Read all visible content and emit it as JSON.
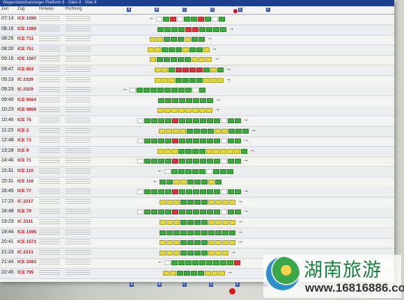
{
  "board": {
    "title_strip": "Wagenstandsanzeiger Platform 8 · Gleis 8 · Voie 8",
    "header": {
      "col_time": "Zeit",
      "col_train": "Zug",
      "col_notes": "Hinweis",
      "col_dest": "Richtung"
    },
    "sectors_top": [
      "A",
      "B",
      "C",
      "D",
      "E",
      "F"
    ],
    "sectors_bottom": [
      "A",
      "B",
      "C",
      "D",
      "E",
      "F"
    ]
  },
  "rows": [
    {
      "time": "07:14",
      "train": "ICE 1590",
      "arrow": "left",
      "cars": "wgrwggrgwg"
    },
    {
      "time": "08:16",
      "train": "ICE 1089",
      "arrow": "right",
      "cars": "ggggrrgggg"
    },
    {
      "time": "08:26",
      "train": "ICE 711",
      "arrow": "right",
      "cars": "yygggygg"
    },
    {
      "time": "08:26",
      "train": "ICE 751",
      "arrow": "right",
      "cars": "yygggyggy"
    },
    {
      "time": "09:16",
      "train": "ICE 1567",
      "arrow": "right",
      "cars": "ygggggyyy"
    },
    {
      "time": "09:47",
      "train": "ICE 853",
      "arrow": "right",
      "cars": "yygrrrrgyg"
    },
    {
      "time": "09:23",
      "train": "IC 2329",
      "arrow": "right",
      "cars": "yyyggggyyy"
    },
    {
      "time": "09:23",
      "train": "IC 2329",
      "arrow": "left",
      "cars": "wggggggggwg"
    },
    {
      "time": "09:40",
      "train": "ICE 9564",
      "arrow": "right",
      "cars": "gggggggg"
    },
    {
      "time": "10:23",
      "train": "ICE 9868",
      "arrow": "right",
      "cars": "yyyyyyyy"
    },
    {
      "time": "10:46",
      "train": "ICE 75",
      "arrow": "right",
      "cars": "wggggrggggggwgg"
    },
    {
      "time": "11:23",
      "train": "ICE 2",
      "arrow": "right",
      "cars": "yyyyggggyyggg"
    },
    {
      "time": "12:48",
      "train": "ICE 73",
      "arrow": "right",
      "cars": "wggggrggggggwgg"
    },
    {
      "time": "13:28",
      "train": "ICE 9",
      "arrow": "right",
      "cars": "yyyggggyyyyyg"
    },
    {
      "time": "14:46",
      "train": "ICE 71",
      "arrow": "right",
      "cars": "wggggrggggggwgg"
    },
    {
      "time": "15:31",
      "train": "ICE 110",
      "arrow": "left",
      "cars": "wgggggwggg"
    },
    {
      "time": "15:31",
      "train": "ICE 116",
      "arrow": "left",
      "cars": "ggyygggyg"
    },
    {
      "time": "16:45",
      "train": "ICE 77",
      "arrow": "right",
      "cars": "wggggrggggggwgg"
    },
    {
      "time": "17:23",
      "train": "IC 2217",
      "arrow": "right",
      "cars": "yyyggggyyyy"
    },
    {
      "time": "18:48",
      "train": "ICE 79",
      "arrow": "right",
      "cars": "wggggrggggggwgg"
    },
    {
      "time": "19:23",
      "train": "IC 2311",
      "arrow": "right",
      "cars": "yyyggggyyyy"
    },
    {
      "time": "19:44",
      "train": "ICE 1595",
      "arrow": "right",
      "cars": "ggggggggggg"
    },
    {
      "time": "20:41",
      "train": "ICE 1571",
      "arrow": "right",
      "cars": "yyyggggyyyy"
    },
    {
      "time": "21:23",
      "train": "IC 2213",
      "arrow": "right",
      "cars": "yyyggggyyy"
    },
    {
      "time": "21:44",
      "train": "ICE 2083",
      "arrow": "left",
      "cars": "wgggggggggr"
    },
    {
      "time": "22:45",
      "train": "ICE 795",
      "arrow": "right",
      "cars": "yyggggyyy"
    }
  ],
  "colors": {
    "first_class": "#e2d83a",
    "second_class": "#3cab3c",
    "restaurant": "#d8343a",
    "locomotive": "#ffffff"
  },
  "watermark": {
    "title": "湖南旅游",
    "url": "www.16816886.com"
  }
}
